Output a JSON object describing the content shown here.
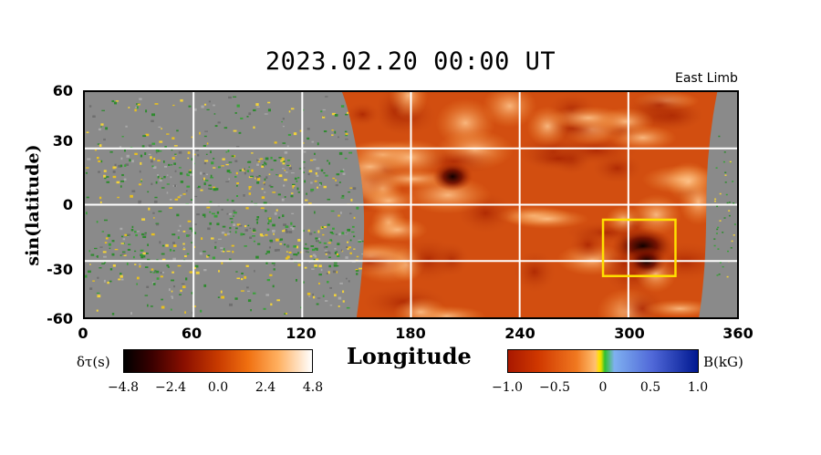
{
  "chart_data": {
    "type": "heatmap",
    "title": "2023.02.20  00:00  UT",
    "annotation": "East Limb",
    "xlabel": "Longitude",
    "ylabel": "sin(latitude)",
    "xlim": [
      0,
      360
    ],
    "ylim": [
      -60,
      60
    ],
    "x_ticks": [
      "0",
      "60",
      "120",
      "180",
      "240",
      "300",
      "360"
    ],
    "y_ticks": [
      "60",
      "30",
      "0",
      "-30",
      "-60"
    ],
    "grid": true,
    "grid_color": "#ffffff",
    "far_side_region": {
      "lon_min": 148,
      "lon_max": 345
    },
    "far_side_dark_spots": [
      {
        "lon": 203,
        "lat": 15,
        "value": -4.8
      },
      {
        "lon": 308,
        "lat": -22,
        "value": -4.0
      },
      {
        "lon": 310,
        "lat": -30,
        "value": -4.8
      }
    ],
    "highlight_box": {
      "lon_min": 286,
      "lon_max": 326,
      "lat_min": -38,
      "lat_max": -8,
      "color": "#ffe000"
    },
    "colorbar_far_side": {
      "label": "δτ(s)",
      "ticks": [
        "−4.8",
        "−2.4",
        "0.0",
        "2.4",
        "4.8"
      ],
      "range": [
        -4.8,
        4.8
      ]
    },
    "colorbar_magnetic": {
      "label": "B(kG)",
      "ticks": [
        "−1.0",
        "−0.5",
        "0",
        "0.5",
        "1.0"
      ],
      "range": [
        -1.0,
        1.0
      ]
    }
  }
}
